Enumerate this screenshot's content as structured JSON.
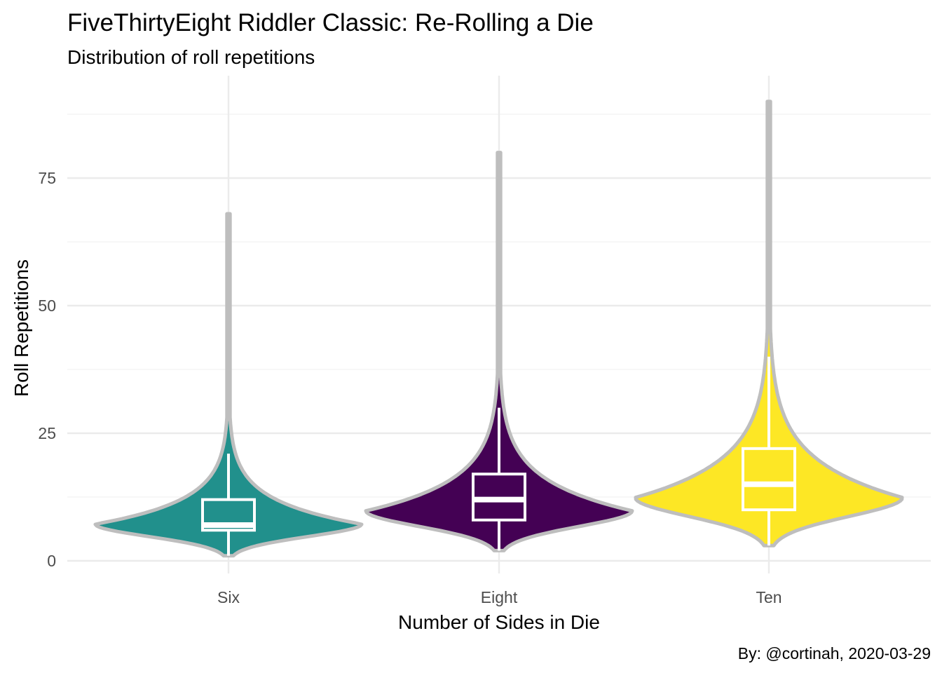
{
  "chart_data": {
    "type": "violin",
    "title": "FiveThirtyEight Riddler Classic: Re-Rolling a Die",
    "subtitle": "Distribution of roll repetitions",
    "xlabel": "Number of Sides in Die",
    "ylabel": "Roll Repetitions",
    "caption": "By: @cortinah, 2020-03-29",
    "categories": [
      "Six",
      "Eight",
      "Ten"
    ],
    "ylim": [
      0,
      90
    ],
    "y_ticks": [
      0,
      25,
      50,
      75
    ],
    "grid": true,
    "legend": "none",
    "series": [
      {
        "category": "Six",
        "fill": "#21908C",
        "min": 1,
        "max": 68,
        "box": {
          "lower_whisker": 1,
          "q1": 6,
          "median": 7,
          "q3": 12,
          "upper_whisker": 21
        }
      },
      {
        "category": "Eight",
        "fill": "#440154",
        "min": 2,
        "max": 80,
        "box": {
          "lower_whisker": 2,
          "q1": 8,
          "median": 12,
          "q3": 17,
          "upper_whisker": 30
        }
      },
      {
        "category": "Ten",
        "fill": "#FDE725",
        "min": 3,
        "max": 90,
        "box": {
          "lower_whisker": 3,
          "q1": 10,
          "median": 15,
          "q3": 22,
          "upper_whisker": 40
        }
      }
    ],
    "outline_color": "#BEBEBE",
    "box_color": "#FFFFFF",
    "grid_major_color": "#EBEBEB",
    "grid_minor_color": "#F2F2F2"
  }
}
